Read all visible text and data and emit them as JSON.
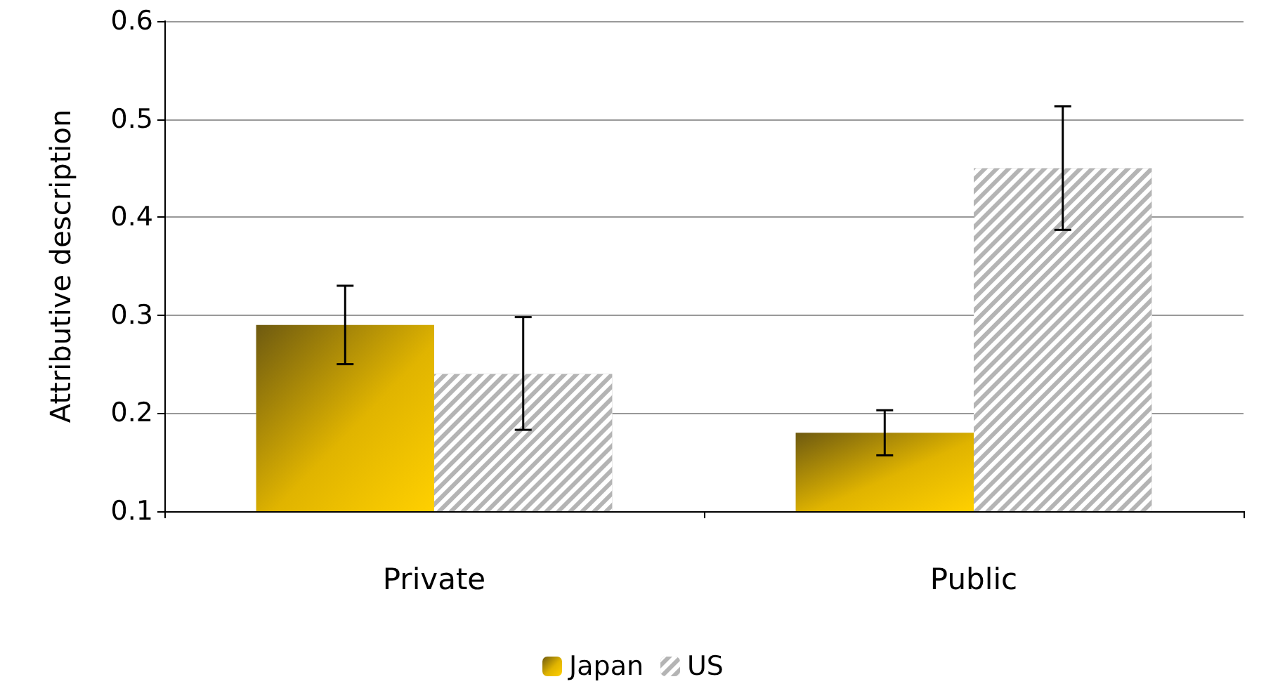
{
  "chart_data": {
    "type": "bar",
    "ylabel": "Attributive description",
    "categories": [
      "Private",
      "Public"
    ],
    "series": [
      {
        "name": "Japan",
        "color": "#e0b400",
        "values": [
          0.29,
          0.18
        ],
        "errors": [
          [
            0.25,
            0.33
          ],
          [
            0.157,
            0.203
          ]
        ]
      },
      {
        "name": "US",
        "color": "#b4b4b4",
        "values": [
          0.24,
          0.45
        ],
        "errors": [
          [
            0.183,
            0.298
          ],
          [
            0.387,
            0.513
          ]
        ]
      }
    ],
    "ylim": [
      0.1,
      0.6
    ],
    "yticks": [
      0.1,
      0.2,
      0.3,
      0.4,
      0.5,
      0.6
    ],
    "grid": "y",
    "legend": "bottom"
  }
}
